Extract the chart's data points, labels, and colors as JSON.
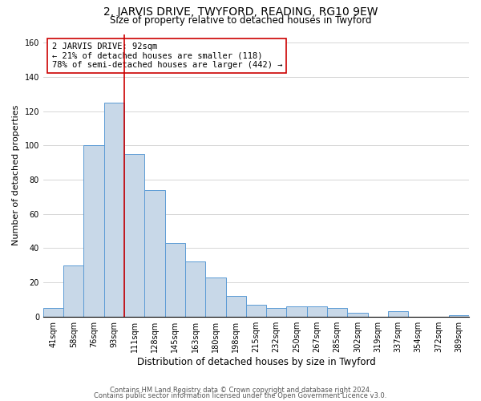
{
  "title": "2, JARVIS DRIVE, TWYFORD, READING, RG10 9EW",
  "subtitle": "Size of property relative to detached houses in Twyford",
  "xlabel": "Distribution of detached houses by size in Twyford",
  "ylabel": "Number of detached properties",
  "bin_labels": [
    "41sqm",
    "58sqm",
    "76sqm",
    "93sqm",
    "111sqm",
    "128sqm",
    "145sqm",
    "163sqm",
    "180sqm",
    "198sqm",
    "215sqm",
    "232sqm",
    "250sqm",
    "267sqm",
    "285sqm",
    "302sqm",
    "319sqm",
    "337sqm",
    "354sqm",
    "372sqm",
    "389sqm"
  ],
  "bar_values": [
    5,
    30,
    100,
    125,
    95,
    74,
    43,
    32,
    23,
    12,
    7,
    5,
    6,
    6,
    5,
    2,
    0,
    3,
    0,
    0,
    1
  ],
  "bar_color": "#c8d8e8",
  "bar_edge_color": "#5b9bd5",
  "vline_x_index": 3.5,
  "vline_color": "#cc0000",
  "annotation_text": "2 JARVIS DRIVE: 92sqm\n← 21% of detached houses are smaller (118)\n78% of semi-detached houses are larger (442) →",
  "annotation_box_edge": "#cc0000",
  "ylim": [
    0,
    165
  ],
  "yticks": [
    0,
    20,
    40,
    60,
    80,
    100,
    120,
    140,
    160
  ],
  "footer_line1": "Contains HM Land Registry data © Crown copyright and database right 2024.",
  "footer_line2": "Contains public sector information licensed under the Open Government Licence v3.0.",
  "background_color": "#ffffff",
  "grid_color": "#d0d0d0",
  "title_fontsize": 10,
  "subtitle_fontsize": 8.5,
  "ylabel_fontsize": 8,
  "xlabel_fontsize": 8.5,
  "tick_fontsize": 7,
  "footer_fontsize": 6,
  "annotation_fontsize": 7.5
}
